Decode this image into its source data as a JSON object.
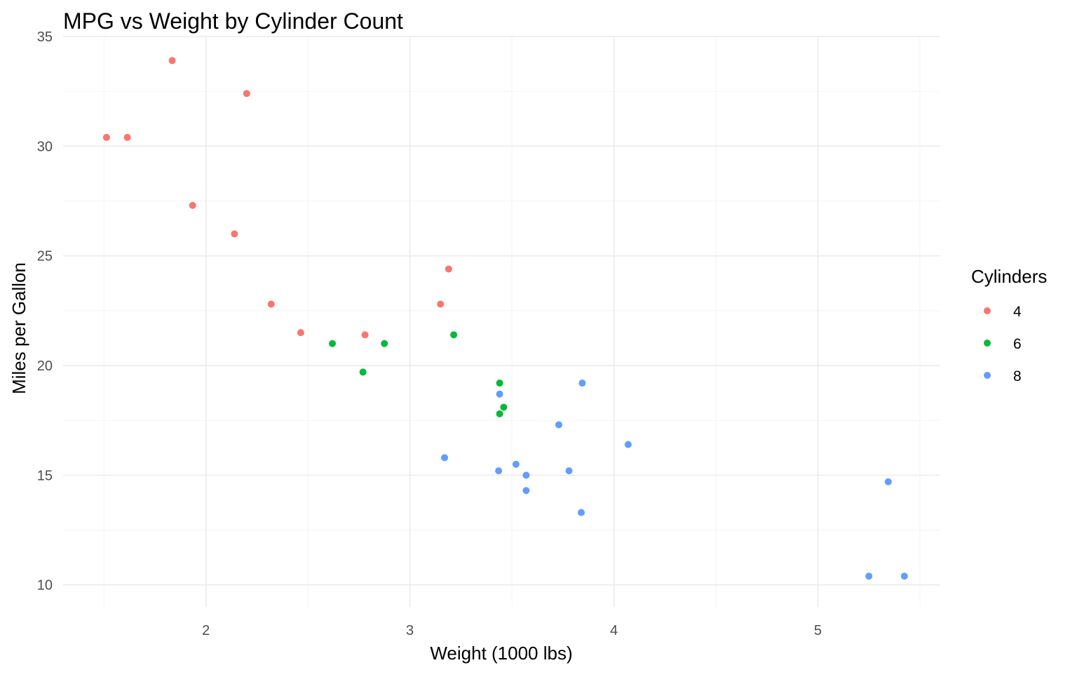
{
  "chart_data": {
    "type": "scatter",
    "title": "MPG vs Weight by Cylinder Count",
    "xlabel": "Weight (1000 lbs)",
    "ylabel": "Miles per Gallon",
    "xlim": [
      1.3,
      5.6
    ],
    "ylim": [
      9,
      35
    ],
    "x_ticks": [
      2,
      3,
      4,
      5
    ],
    "y_ticks": [
      10,
      15,
      20,
      25,
      30,
      35
    ],
    "x_minor_ticks": [
      1.5,
      2.5,
      3.5,
      4.5,
      5.5
    ],
    "y_minor_ticks": [
      12.5,
      17.5,
      22.5,
      27.5,
      32.5
    ],
    "grid": true,
    "legend": {
      "title": "Cylinders",
      "position": "right"
    },
    "series": [
      {
        "name": "4",
        "color": "#F8766D",
        "points": [
          {
            "x": 1.513,
            "y": 30.4
          },
          {
            "x": 1.615,
            "y": 30.4
          },
          {
            "x": 1.835,
            "y": 33.9
          },
          {
            "x": 1.935,
            "y": 27.3
          },
          {
            "x": 2.14,
            "y": 26.0
          },
          {
            "x": 2.2,
            "y": 32.4
          },
          {
            "x": 2.32,
            "y": 22.8
          },
          {
            "x": 2.465,
            "y": 21.5
          },
          {
            "x": 2.78,
            "y": 21.4
          },
          {
            "x": 3.15,
            "y": 22.8
          },
          {
            "x": 3.19,
            "y": 24.4
          }
        ]
      },
      {
        "name": "6",
        "color": "#00BA38",
        "points": [
          {
            "x": 2.62,
            "y": 21.0
          },
          {
            "x": 2.77,
            "y": 19.7
          },
          {
            "x": 2.875,
            "y": 21.0
          },
          {
            "x": 3.215,
            "y": 21.4
          },
          {
            "x": 3.44,
            "y": 19.2
          },
          {
            "x": 3.44,
            "y": 17.8
          },
          {
            "x": 3.46,
            "y": 18.1
          }
        ]
      },
      {
        "name": "8",
        "color": "#619CFF",
        "points": [
          {
            "x": 3.17,
            "y": 15.8
          },
          {
            "x": 3.435,
            "y": 15.2
          },
          {
            "x": 3.44,
            "y": 18.7
          },
          {
            "x": 3.52,
            "y": 15.5
          },
          {
            "x": 3.57,
            "y": 15.0
          },
          {
            "x": 3.57,
            "y": 14.3
          },
          {
            "x": 3.73,
            "y": 17.3
          },
          {
            "x": 3.78,
            "y": 15.2
          },
          {
            "x": 3.84,
            "y": 13.3
          },
          {
            "x": 3.845,
            "y": 19.2
          },
          {
            "x": 4.07,
            "y": 16.4
          },
          {
            "x": 5.25,
            "y": 10.4
          },
          {
            "x": 5.345,
            "y": 14.7
          },
          {
            "x": 5.424,
            "y": 10.4
          }
        ]
      }
    ]
  }
}
